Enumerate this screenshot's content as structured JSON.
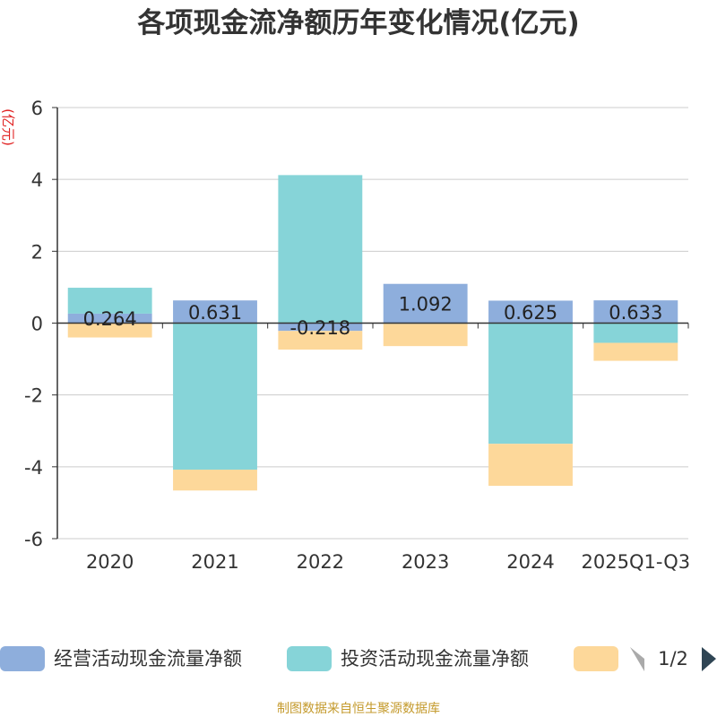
{
  "chart_data": {
    "type": "bar",
    "stacked": true,
    "title": "各项现金流净额历年变化情况(亿元)",
    "ylabel": "(亿元)",
    "xlabel": "",
    "categories": [
      "2020",
      "2021",
      "2022",
      "2023",
      "2024",
      "2025Q1-Q3"
    ],
    "ylim": [
      -6,
      6
    ],
    "yticks": [
      6,
      4,
      2,
      0,
      -2,
      -4,
      -6
    ],
    "grid": true,
    "legend_position": "bottom",
    "series": [
      {
        "name": "经营活动现金流量净额",
        "color": "#8eaedc",
        "values": [
          0.264,
          0.631,
          -0.218,
          1.092,
          0.625,
          0.633
        ],
        "data_labels": [
          "0.264",
          "0.631",
          "-0.218",
          "1.092",
          "0.625",
          "0.633"
        ]
      },
      {
        "name": "投资活动现金流量净额",
        "color": "#86d4d8",
        "values": [
          0.72,
          -4.08,
          4.12,
          -0.02,
          -3.36,
          -0.55
        ]
      },
      {
        "name": "",
        "color": "#fdd89a",
        "values": [
          -0.4,
          -0.58,
          -0.52,
          -0.62,
          -1.17,
          -0.5
        ]
      }
    ]
  },
  "legend": {
    "pager": "1/2",
    "prev_icon": "triangle-left-icon",
    "next_icon": "triangle-right-icon"
  },
  "footer": {
    "source": "制图数据来自恒生聚源数据库"
  }
}
